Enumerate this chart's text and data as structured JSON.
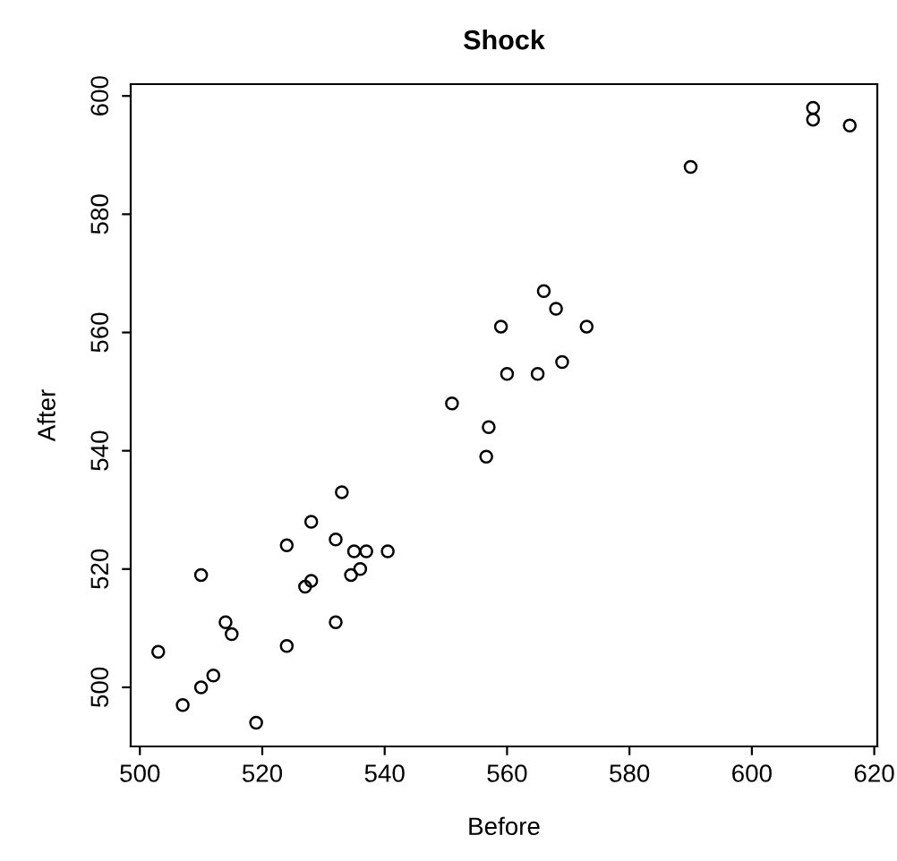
{
  "chart_data": {
    "type": "scatter",
    "title": "Shock",
    "xlabel": "Before",
    "ylabel": "After",
    "x": [
      503,
      507,
      510,
      512,
      510,
      514,
      515,
      519,
      524,
      524,
      528,
      527,
      528,
      533,
      532,
      532,
      534.5,
      535,
      536,
      537,
      540.5,
      551,
      557,
      556.6,
      559,
      560,
      565,
      566,
      568,
      569,
      573,
      590,
      610,
      610,
      616
    ],
    "values": [
      506,
      497,
      500,
      502,
      519,
      511,
      509,
      494,
      507,
      524,
      528,
      517,
      518,
      533,
      525,
      511,
      519,
      523,
      520,
      523,
      523,
      548,
      544,
      539,
      561,
      553,
      553,
      567,
      564,
      555,
      561,
      588,
      596,
      598,
      595
    ],
    "color": "#000000",
    "marker": "circle",
    "grid": false,
    "xlim": [
      498.5,
      620.5
    ],
    "ylim": [
      490,
      602
    ],
    "xticks": [
      500,
      520,
      540,
      560,
      580,
      600,
      620
    ],
    "yticks": [
      500,
      520,
      540,
      560,
      580,
      600
    ]
  }
}
